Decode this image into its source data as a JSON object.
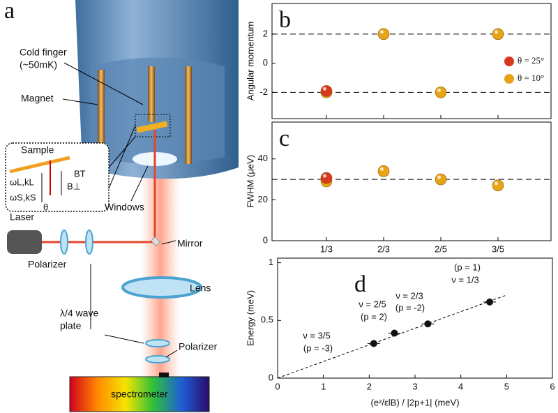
{
  "diagram": {
    "panel_label": "a",
    "labels": {
      "cold_finger": "Cold finger",
      "cold_finger_temp": "(~50mK)",
      "magnet": "Magnet",
      "sample": "Sample",
      "omega_l": "ωL,kL",
      "omega_s": "ωS,kS",
      "theta": "θ",
      "b_perp": "B⊥",
      "b_t": "BT",
      "windows": "Windows",
      "laser": "Laser",
      "mirror": "Mirror",
      "polarizer_1": "Polarizer",
      "lens": "Lens",
      "wave_plate_1": "λ/4 wave",
      "wave_plate_2": "plate",
      "polarizer_2": "Polarizer",
      "spectrometer": "spectrometer"
    }
  },
  "chart_data": [
    {
      "type": "scatter",
      "panel_label": "b",
      "ylabel": "Angular momentum",
      "ylim": [
        -3.8,
        4.1
      ],
      "yticks": [
        -2,
        0,
        2
      ],
      "hlines": [
        2,
        -2
      ],
      "legend": "right",
      "series": [
        {
          "name": "θ = 25°",
          "color": "#d9381e",
          "values": [
            -2,
            null,
            null,
            null
          ]
        },
        {
          "name": "θ = 10°",
          "color": "#e8a317",
          "values": [
            -2,
            2,
            -2,
            2
          ]
        }
      ]
    },
    {
      "type": "scatter",
      "panel_label": "c",
      "ylabel": "FWHM (μeV)",
      "categories": [
        "1/3",
        "2/3",
        "2/5",
        "3/5"
      ],
      "ylim": [
        0,
        58
      ],
      "yticks": [
        0,
        20,
        40
      ],
      "hlines": [
        30
      ],
      "series": [
        {
          "color": "#d9381e",
          "values": [
            30,
            null,
            null,
            null
          ]
        },
        {
          "color": "#e8a317",
          "values": [
            29,
            34,
            30,
            27
          ]
        }
      ]
    },
    {
      "type": "xy",
      "panel_label": "d",
      "xlabel": "(e²/εlB) / |2p+1|  (meV)",
      "ylabel": "Energy (meV)",
      "xlim": [
        0,
        6
      ],
      "ylim": [
        0,
        1.04
      ],
      "xticks": [
        0,
        1,
        2,
        3,
        4,
        5,
        6
      ],
      "yticks": [
        0,
        0.5,
        1
      ],
      "x": [
        2.1,
        2.55,
        3.28,
        4.63
      ],
      "values": [
        0.3,
        0.39,
        0.47,
        0.66
      ],
      "color": "#111111",
      "fit": {
        "x": [
          0,
          5
        ],
        "values": [
          0,
          0.72
        ]
      },
      "annotations": [
        "ν = 3/5",
        "(p = -3)",
        "ν = 2/5",
        "(p = 2)",
        "ν = 2/3",
        "(p = -2)",
        "ν = 1/3",
        "(p = 1)"
      ]
    }
  ]
}
